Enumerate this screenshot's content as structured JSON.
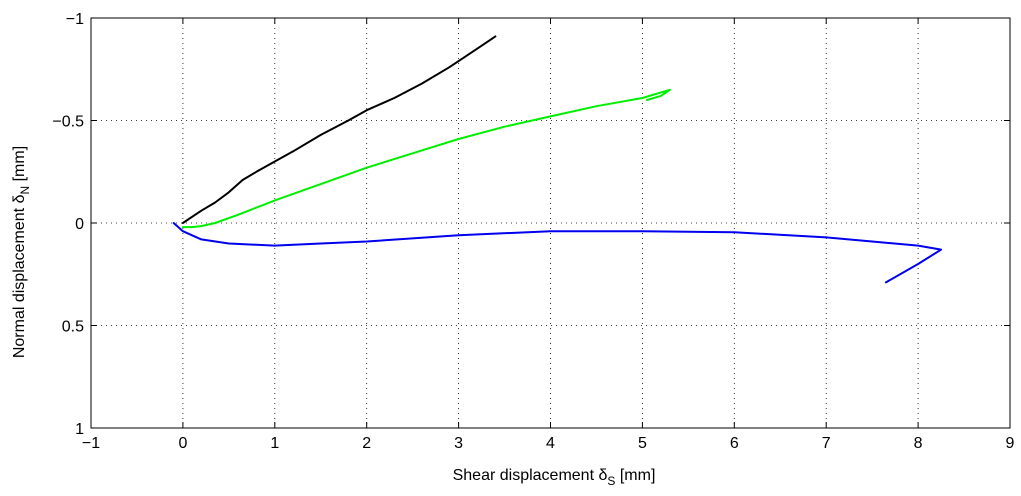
{
  "chart_data": {
    "type": "line",
    "xlabel": {
      "main": "Shear displacement δ",
      "sub": "S",
      "unit": " [mm]"
    },
    "ylabel": {
      "main": "Normal displacement δ",
      "sub": "N",
      "unit": " [mm]"
    },
    "xlim": [
      -1,
      9
    ],
    "ylim": [
      -1,
      1
    ],
    "y_reversed": true,
    "grid": true,
    "xticks": [
      -1,
      0,
      1,
      2,
      3,
      4,
      5,
      6,
      7,
      8,
      9
    ],
    "yticks": [
      -1,
      -0.5,
      0,
      0.5,
      1
    ],
    "xtick_labels": [
      "−1",
      "0",
      "1",
      "2",
      "3",
      "4",
      "5",
      "6",
      "7",
      "8",
      "9"
    ],
    "ytick_labels": [
      "−1",
      "−0.5",
      "0",
      "0.5",
      "1"
    ],
    "series": [
      {
        "color": "#000000",
        "x": [
          0.0,
          0.1,
          0.2,
          0.35,
          0.5,
          0.65,
          0.8,
          1.0,
          1.2,
          1.5,
          1.8,
          2.0,
          2.3,
          2.6,
          2.9,
          3.2,
          3.4
        ],
        "y": [
          0.0,
          -0.03,
          -0.06,
          -0.1,
          -0.15,
          -0.21,
          -0.25,
          -0.3,
          -0.35,
          -0.43,
          -0.5,
          -0.55,
          -0.61,
          -0.68,
          -0.76,
          -0.85,
          -0.91
        ]
      },
      {
        "color": "#00ee00",
        "x": [
          0.0,
          0.1,
          0.2,
          0.35,
          0.6,
          1.0,
          1.5,
          2.0,
          2.5,
          3.0,
          3.5,
          4.0,
          4.5,
          5.0,
          5.3,
          5.2,
          5.05
        ],
        "y": [
          0.02,
          0.02,
          0.015,
          0.0,
          -0.04,
          -0.11,
          -0.19,
          -0.27,
          -0.34,
          -0.41,
          -0.47,
          -0.52,
          -0.57,
          -0.61,
          -0.65,
          -0.62,
          -0.6
        ]
      },
      {
        "color": "#0000ee",
        "x": [
          -0.1,
          0.0,
          0.2,
          0.5,
          1.0,
          1.5,
          2.0,
          3.0,
          4.0,
          5.0,
          6.0,
          7.0,
          7.5,
          8.0,
          8.25,
          8.0,
          7.65
        ],
        "y": [
          0.0,
          0.04,
          0.08,
          0.1,
          0.11,
          0.1,
          0.09,
          0.06,
          0.04,
          0.04,
          0.045,
          0.07,
          0.09,
          0.11,
          0.13,
          0.2,
          0.29
        ]
      }
    ]
  }
}
